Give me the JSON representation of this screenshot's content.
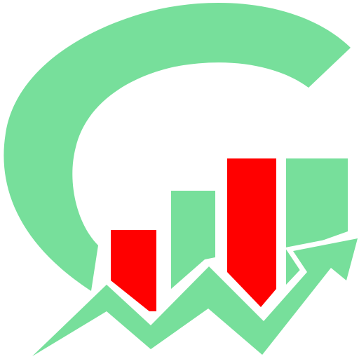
{
  "logo": {
    "icon": "growth-chart-g-logo-icon",
    "colors": {
      "green": "#77df9b",
      "red": "#ff0000",
      "background": "#ffffff"
    }
  }
}
